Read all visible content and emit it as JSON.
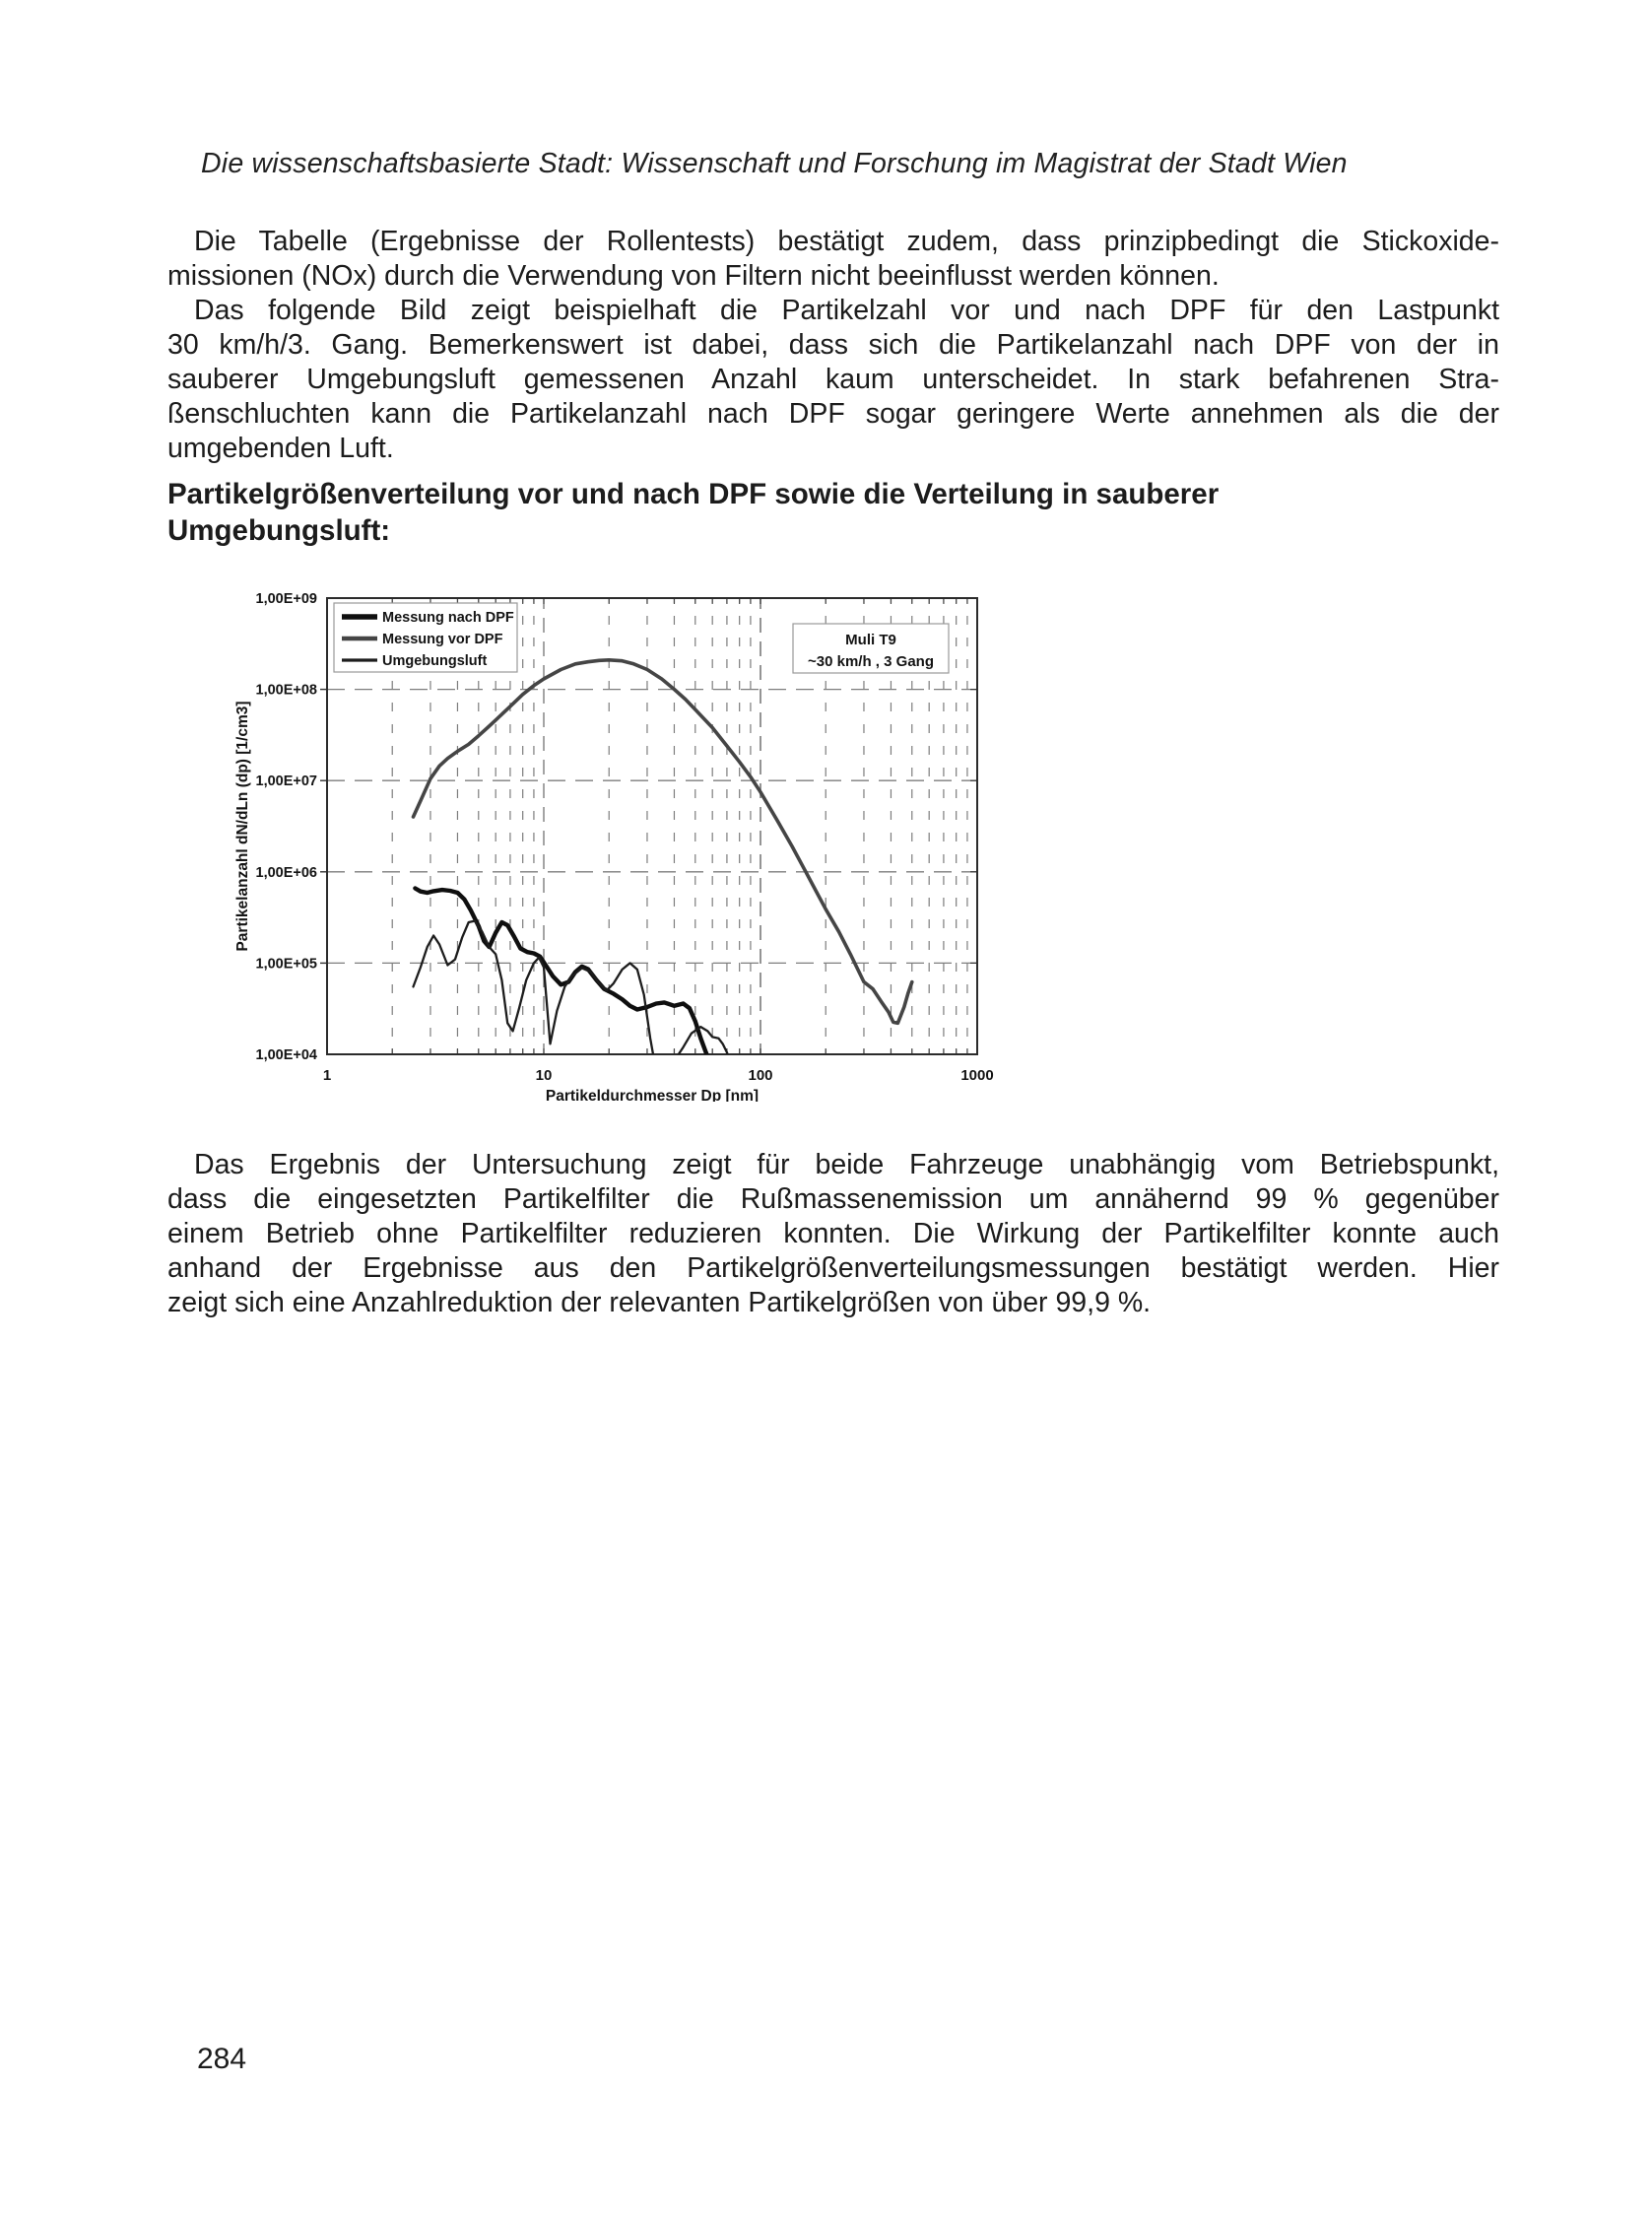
{
  "page": {
    "header": "Die wissenschaftsbasierte Stadt: Wissenschaft und Forschung im Magistrat der Stadt Wien",
    "page_number": "284"
  },
  "body": {
    "para1_lines": [
      "Die Tabelle (Ergebnisse der Rollentests) bestätigt zudem, dass prinzipbedingt die Stickoxide-",
      "missionen (NOx) durch die Verwendung von Filtern nicht beeinflusst werden können."
    ],
    "para2_lines": [
      "Das folgende Bild zeigt beispielhaft die Partikelzahl vor und nach DPF für den Lastpunkt",
      "30 km/h/3. Gang. Bemerkenswert ist dabei, dass sich die Partikelanzahl nach DPF von der in",
      "sauberer Umgebungsluft gemessenen Anzahl kaum unterscheidet. In stark befahrenen Stra-",
      "ßenschluchten kann die Partikelanzahl nach DPF sogar geringere Werte annehmen als die der",
      "umgebenden Luft."
    ],
    "heading_lines": [
      "Partikelgrößenverteilung vor und nach DPF sowie die Verteilung in sauberer",
      "Umgebungsluft:"
    ],
    "para3_lines": [
      "Das Ergebnis der Untersuchung zeigt für beide Fahrzeuge unabhängig vom Betriebspunkt,",
      "dass die eingesetzten Partikelfilter die Rußmassenemission um annähernd 99 % gegenüber",
      "einem Betrieb ohne Partikelfilter reduzieren konnten. Die Wirkung der Partikelfilter konnte auch",
      "anhand der Ergebnisse aus den Partikelgrößenverteilungsmessungen bestätigt werden. Hier",
      "zeigt sich eine Anzahlreduktion der relevanten Partikelgrößen von über 99,9 %."
    ]
  },
  "chart_data": {
    "type": "line",
    "x_scale": "log",
    "y_scale": "log",
    "xlim": [
      1,
      1000
    ],
    "ylim": [
      10000,
      1000000000
    ],
    "xlabel": "Partikeldurchmesser Dp [nm]",
    "ylabel": "Partikelanzahl dN/dLn (dp) [1/cm3]",
    "x_tick_labels": [
      "1",
      "10",
      "100",
      "1000"
    ],
    "y_tick_labels": [
      "1,00E+04",
      "1,00E+05",
      "1,00E+06",
      "1,00E+07",
      "1,00E+08",
      "1,00E+09"
    ],
    "grid": "dashed, log minor + major",
    "grid_color": "#7d7d7d",
    "frame_color": "#2b2b2b",
    "legend_position": "top-left",
    "annotation": [
      "Muli T9",
      "~30 km/h , 3 Gang"
    ],
    "series": [
      {
        "name": "Messung nach DPF",
        "color": "#0f0f0f",
        "width": 4.4,
        "points": [
          [
            2.55,
            660000
          ],
          [
            2.7,
            610000
          ],
          [
            2.9,
            590000
          ],
          [
            3.1,
            615000
          ],
          [
            3.4,
            635000
          ],
          [
            3.7,
            620000
          ],
          [
            4.0,
            590000
          ],
          [
            4.3,
            500000
          ],
          [
            4.6,
            380000
          ],
          [
            5.0,
            255000
          ],
          [
            5.3,
            175000
          ],
          [
            5.6,
            150000
          ],
          [
            6.0,
            215000
          ],
          [
            6.4,
            280000
          ],
          [
            6.8,
            260000
          ],
          [
            7.3,
            195000
          ],
          [
            7.8,
            145000
          ],
          [
            8.4,
            132000
          ],
          [
            9.0,
            128000
          ],
          [
            9.6,
            118000
          ],
          [
            10.3,
            92000
          ],
          [
            11,
            72000
          ],
          [
            12,
            58000
          ],
          [
            13,
            62000
          ],
          [
            14,
            80000
          ],
          [
            15,
            92000
          ],
          [
            16,
            86000
          ],
          [
            17.5,
            65000
          ],
          [
            19,
            52000
          ],
          [
            21,
            46000
          ],
          [
            23,
            40000
          ],
          [
            25,
            34000
          ],
          [
            27,
            31000
          ],
          [
            30,
            33000
          ],
          [
            33,
            36000
          ],
          [
            36,
            37000
          ],
          [
            40,
            34000
          ],
          [
            44,
            36000
          ],
          [
            47,
            32000
          ],
          [
            50,
            23000
          ],
          [
            53,
            15000
          ],
          [
            56,
            10500
          ],
          [
            58,
            8500
          ]
        ]
      },
      {
        "name": "Messung vor DPF",
        "color": "#454545",
        "width": 3.6,
        "points": [
          [
            2.5,
            4000000
          ],
          [
            2.7,
            6000000
          ],
          [
            3.0,
            10500000
          ],
          [
            3.3,
            14500000
          ],
          [
            3.6,
            17500000
          ],
          [
            4.0,
            21000000
          ],
          [
            4.5,
            25000000
          ],
          [
            5.0,
            31000000
          ],
          [
            5.5,
            38000000
          ],
          [
            6.0,
            46000000
          ],
          [
            7.0,
            65000000
          ],
          [
            8.0,
            88000000
          ],
          [
            9.0,
            110000000
          ],
          [
            10,
            130000000
          ],
          [
            12,
            165000000
          ],
          [
            14,
            190000000
          ],
          [
            16,
            200000000
          ],
          [
            18,
            207000000
          ],
          [
            20,
            210000000
          ],
          [
            23,
            205000000
          ],
          [
            26,
            190000000
          ],
          [
            30,
            165000000
          ],
          [
            35,
            130000000
          ],
          [
            40,
            100000000
          ],
          [
            45,
            78000000
          ],
          [
            50,
            60000000
          ],
          [
            60,
            38000000
          ],
          [
            70,
            24000000
          ],
          [
            80,
            16000000
          ],
          [
            90,
            11000000
          ],
          [
            100,
            7500000
          ],
          [
            120,
            3600000
          ],
          [
            140,
            1900000
          ],
          [
            160,
            1050000
          ],
          [
            180,
            620000
          ],
          [
            200,
            390000
          ],
          [
            230,
            220000
          ],
          [
            260,
            125000
          ],
          [
            300,
            62000
          ],
          [
            330,
            52000
          ],
          [
            360,
            38000
          ],
          [
            390,
            29000
          ],
          [
            410,
            22500
          ],
          [
            430,
            22000
          ],
          [
            460,
            33000
          ],
          [
            480,
            47000
          ],
          [
            500,
            62000
          ]
        ]
      },
      {
        "name": "Umgebungsluft",
        "color": "#1d1d1d",
        "width": 2.3,
        "points": [
          [
            2.5,
            55000
          ],
          [
            2.7,
            90000
          ],
          [
            2.9,
            150000
          ],
          [
            3.1,
            200000
          ],
          [
            3.3,
            160000
          ],
          [
            3.6,
            95000
          ],
          [
            3.9,
            110000
          ],
          [
            4.2,
            190000
          ],
          [
            4.5,
            280000
          ],
          [
            4.8,
            290000
          ],
          [
            5.2,
            220000
          ],
          [
            5.6,
            150000
          ],
          [
            6.0,
            125000
          ],
          [
            6.4,
            65000
          ],
          [
            6.8,
            22000
          ],
          [
            7.2,
            18000
          ],
          [
            7.7,
            32000
          ],
          [
            8.3,
            65000
          ],
          [
            9.0,
            100000
          ],
          [
            9.5,
            115000
          ],
          [
            10.0,
            90000
          ],
          [
            10.7,
            13000
          ],
          [
            11.5,
            30000
          ],
          [
            12.5,
            55000
          ],
          [
            13.5,
            72000
          ],
          [
            15,
            88000
          ],
          [
            16.5,
            80000
          ],
          [
            18,
            60000
          ],
          [
            19.5,
            50000
          ],
          [
            21,
            60000
          ],
          [
            23,
            85000
          ],
          [
            25,
            100000
          ],
          [
            27,
            85000
          ],
          [
            29,
            45000
          ],
          [
            31,
            15000
          ],
          [
            32.5,
            8000
          ],
          [
            40,
            8500
          ],
          [
            44,
            12000
          ],
          [
            48,
            17000
          ],
          [
            53,
            20000
          ],
          [
            57,
            18000
          ],
          [
            60,
            15500
          ],
          [
            64,
            15000
          ],
          [
            67,
            13000
          ],
          [
            70,
            10500
          ],
          [
            73,
            8000
          ]
        ]
      }
    ]
  }
}
